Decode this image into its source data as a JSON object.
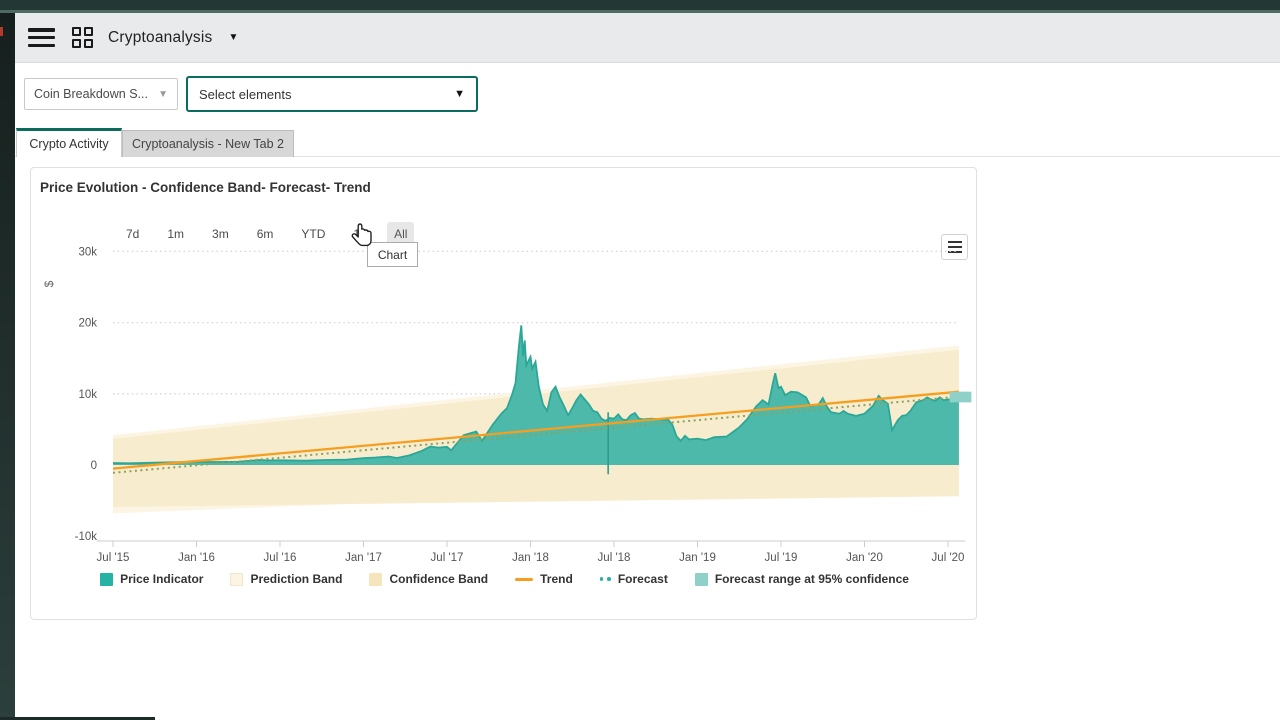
{
  "app": {
    "title": "Cryptoanalysis",
    "caret": "▼"
  },
  "filters": {
    "coin_breakdown": {
      "label": "Coin Breakdown S...",
      "caret": "▼"
    },
    "select_elements": {
      "label": "Select elements",
      "caret": "▼"
    }
  },
  "tabs": [
    {
      "label": "Crypto Activity",
      "active": true
    },
    {
      "label": "Cryptoanalysis - New Tab 2",
      "active": false
    }
  ],
  "card": {
    "title": "Price Evolution - Confidence Band- Forecast- Trend"
  },
  "range_buttons": [
    "7d",
    "1m",
    "3m",
    "6m",
    "YTD",
    "1y",
    "All"
  ],
  "hovered_range_index": 6,
  "tooltip": "Chart",
  "colors": {
    "accent_teal": "#0b6b5d",
    "price_fill": "#4cb9ab",
    "price_line": "#2ba797",
    "prediction_band": "#fdf5e4",
    "confidence_band": "#f8ecce",
    "trend": "#f59e1f",
    "forecast": "#8aa15e",
    "forecast_range": "#8fd0c8",
    "marker_line": "#2d9c8e",
    "grid": "#d5d5d5",
    "axis": "#cccccc",
    "tick_text": "#555555"
  },
  "chart_data": {
    "type": "area",
    "title": "Price Evolution - Confidence Band- Forecast- Trend",
    "ylabel": "$",
    "x_ticks": [
      "Jul '15",
      "Jan '16",
      "Jul '16",
      "Jan '17",
      "Jul '17",
      "Jan '18",
      "Jul '18",
      "Jan '19",
      "Jul '19",
      "Jan '20",
      "Jul '20"
    ],
    "y_ticks": [
      {
        "label": "30k",
        "value": 30000
      },
      {
        "label": "20k",
        "value": 20000
      },
      {
        "label": "10k",
        "value": 10000
      },
      {
        "label": "0",
        "value": 0
      },
      {
        "label": "-10k",
        "value": -10000
      }
    ],
    "xlim": [
      0,
      10.13
    ],
    "ylim": [
      -13000,
      33000
    ],
    "grid_values": [
      30000,
      20000,
      10000
    ],
    "legend_position": "bottom",
    "legend": [
      {
        "label": "Price Indicator",
        "swatch": "square",
        "color": "#26b3a4"
      },
      {
        "label": "Prediction Band",
        "swatch": "square",
        "color": "#fdf5e4"
      },
      {
        "label": "Confidence Band",
        "swatch": "square",
        "color": "#f5e4bc"
      },
      {
        "label": "Trend",
        "swatch": "line",
        "color": "#f59e1f"
      },
      {
        "label": "Forecast",
        "swatch": "dots",
        "color": "#26b3a4"
      },
      {
        "label": "Forecast range at 95% confidence",
        "swatch": "square",
        "color": "#8fd0c8"
      }
    ],
    "series": [
      {
        "name": "Price Indicator",
        "points": [
          [
            0,
            280
          ],
          [
            0.2,
            235
          ],
          [
            0.5,
            330
          ],
          [
            0.8,
            400
          ],
          [
            1,
            432
          ],
          [
            1.2,
            415
          ],
          [
            1.5,
            450
          ],
          [
            1.75,
            700
          ],
          [
            1.85,
            640
          ],
          [
            2,
            660
          ],
          [
            2.3,
            605
          ],
          [
            2.6,
            720
          ],
          [
            2.8,
            740
          ],
          [
            3,
            950
          ],
          [
            3.15,
            1050
          ],
          [
            3.3,
            1190
          ],
          [
            3.4,
            980
          ],
          [
            3.55,
            1350
          ],
          [
            3.7,
            2000
          ],
          [
            3.8,
            2600
          ],
          [
            3.9,
            2450
          ],
          [
            4,
            2550
          ],
          [
            4.05,
            2050
          ],
          [
            4.2,
            4200
          ],
          [
            4.35,
            4700
          ],
          [
            4.42,
            3400
          ],
          [
            4.55,
            5700
          ],
          [
            4.65,
            7200
          ],
          [
            4.72,
            8000
          ],
          [
            4.78,
            9900
          ],
          [
            4.82,
            11500
          ],
          [
            4.86,
            16500
          ],
          [
            4.89,
            19600
          ],
          [
            4.91,
            15300
          ],
          [
            4.93,
            17500
          ],
          [
            4.95,
            14000
          ],
          [
            5,
            15200
          ],
          [
            5.02,
            13500
          ],
          [
            5.06,
            14500
          ],
          [
            5.1,
            11000
          ],
          [
            5.15,
            8500
          ],
          [
            5.2,
            7600
          ],
          [
            5.25,
            10200
          ],
          [
            5.3,
            11000
          ],
          [
            5.35,
            9500
          ],
          [
            5.4,
            8300
          ],
          [
            5.45,
            7000
          ],
          [
            5.5,
            8000
          ],
          [
            5.55,
            9100
          ],
          [
            5.6,
            9900
          ],
          [
            5.65,
            9200
          ],
          [
            5.7,
            8500
          ],
          [
            5.75,
            7600
          ],
          [
            5.8,
            7400
          ],
          [
            5.85,
            6500
          ],
          [
            5.9,
            6200
          ],
          [
            5.95,
            6600
          ],
          [
            6,
            6500
          ],
          [
            6.05,
            7100
          ],
          [
            6.1,
            6400
          ],
          [
            6.15,
            6300
          ],
          [
            6.2,
            7000
          ],
          [
            6.25,
            7300
          ],
          [
            6.3,
            6500
          ],
          [
            6.35,
            6400
          ],
          [
            6.45,
            6500
          ],
          [
            6.55,
            6400
          ],
          [
            6.65,
            6350
          ],
          [
            6.7,
            5600
          ],
          [
            6.75,
            4000
          ],
          [
            6.8,
            3400
          ],
          [
            6.85,
            4100
          ],
          [
            6.9,
            3600
          ],
          [
            7,
            3700
          ],
          [
            7.1,
            3500
          ],
          [
            7.2,
            3900
          ],
          [
            7.35,
            4000
          ],
          [
            7.5,
            5300
          ],
          [
            7.6,
            6500
          ],
          [
            7.7,
            8200
          ],
          [
            7.78,
            9100
          ],
          [
            7.85,
            8500
          ],
          [
            7.9,
            11300
          ],
          [
            7.93,
            12900
          ],
          [
            7.97,
            10800
          ],
          [
            8,
            11000
          ],
          [
            8.05,
            9800
          ],
          [
            8.12,
            10300
          ],
          [
            8.2,
            10200
          ],
          [
            8.3,
            9500
          ],
          [
            8.35,
            8300
          ],
          [
            8.45,
            8500
          ],
          [
            8.5,
            9400
          ],
          [
            8.55,
            8200
          ],
          [
            8.6,
            7400
          ],
          [
            8.7,
            7200
          ],
          [
            8.75,
            7600
          ],
          [
            8.8,
            7200
          ],
          [
            8.9,
            6900
          ],
          [
            9,
            7200
          ],
          [
            9.1,
            8300
          ],
          [
            9.17,
            9700
          ],
          [
            9.22,
            9100
          ],
          [
            9.28,
            8600
          ],
          [
            9.33,
            4900
          ],
          [
            9.4,
            6300
          ],
          [
            9.45,
            6900
          ],
          [
            9.5,
            7000
          ],
          [
            9.55,
            7600
          ],
          [
            9.62,
            8800
          ],
          [
            9.7,
            9100
          ],
          [
            9.75,
            9500
          ],
          [
            9.8,
            9200
          ],
          [
            9.85,
            9000
          ],
          [
            9.9,
            9500
          ],
          [
            9.95,
            9100
          ],
          [
            10,
            9200
          ],
          [
            10.08,
            9300
          ],
          [
            10.13,
            9100
          ]
        ]
      },
      {
        "name": "Trend",
        "points": [
          [
            0,
            -500
          ],
          [
            10.13,
            10300
          ]
        ]
      },
      {
        "name": "Forecast",
        "points": [
          [
            0,
            -1100
          ],
          [
            10.13,
            9600
          ]
        ]
      }
    ],
    "bands": [
      {
        "name": "Prediction Band",
        "upper": [
          [
            0,
            4200
          ],
          [
            10.13,
            16800
          ]
        ],
        "lower": [
          [
            0,
            -6800
          ],
          [
            10.13,
            -2000
          ]
        ]
      },
      {
        "name": "Confidence Band",
        "upper": [
          [
            0,
            3700
          ],
          [
            10.13,
            16200
          ]
        ],
        "lower": [
          [
            0,
            -5900
          ],
          [
            10.13,
            -4400
          ]
        ]
      }
    ],
    "marker_line": {
      "t": 5.93,
      "from": 7400,
      "to": -1300
    },
    "forecast_range_marker": {
      "t0": 10.02,
      "t1": 10.28,
      "v0": 8800,
      "v1": 10300
    }
  }
}
